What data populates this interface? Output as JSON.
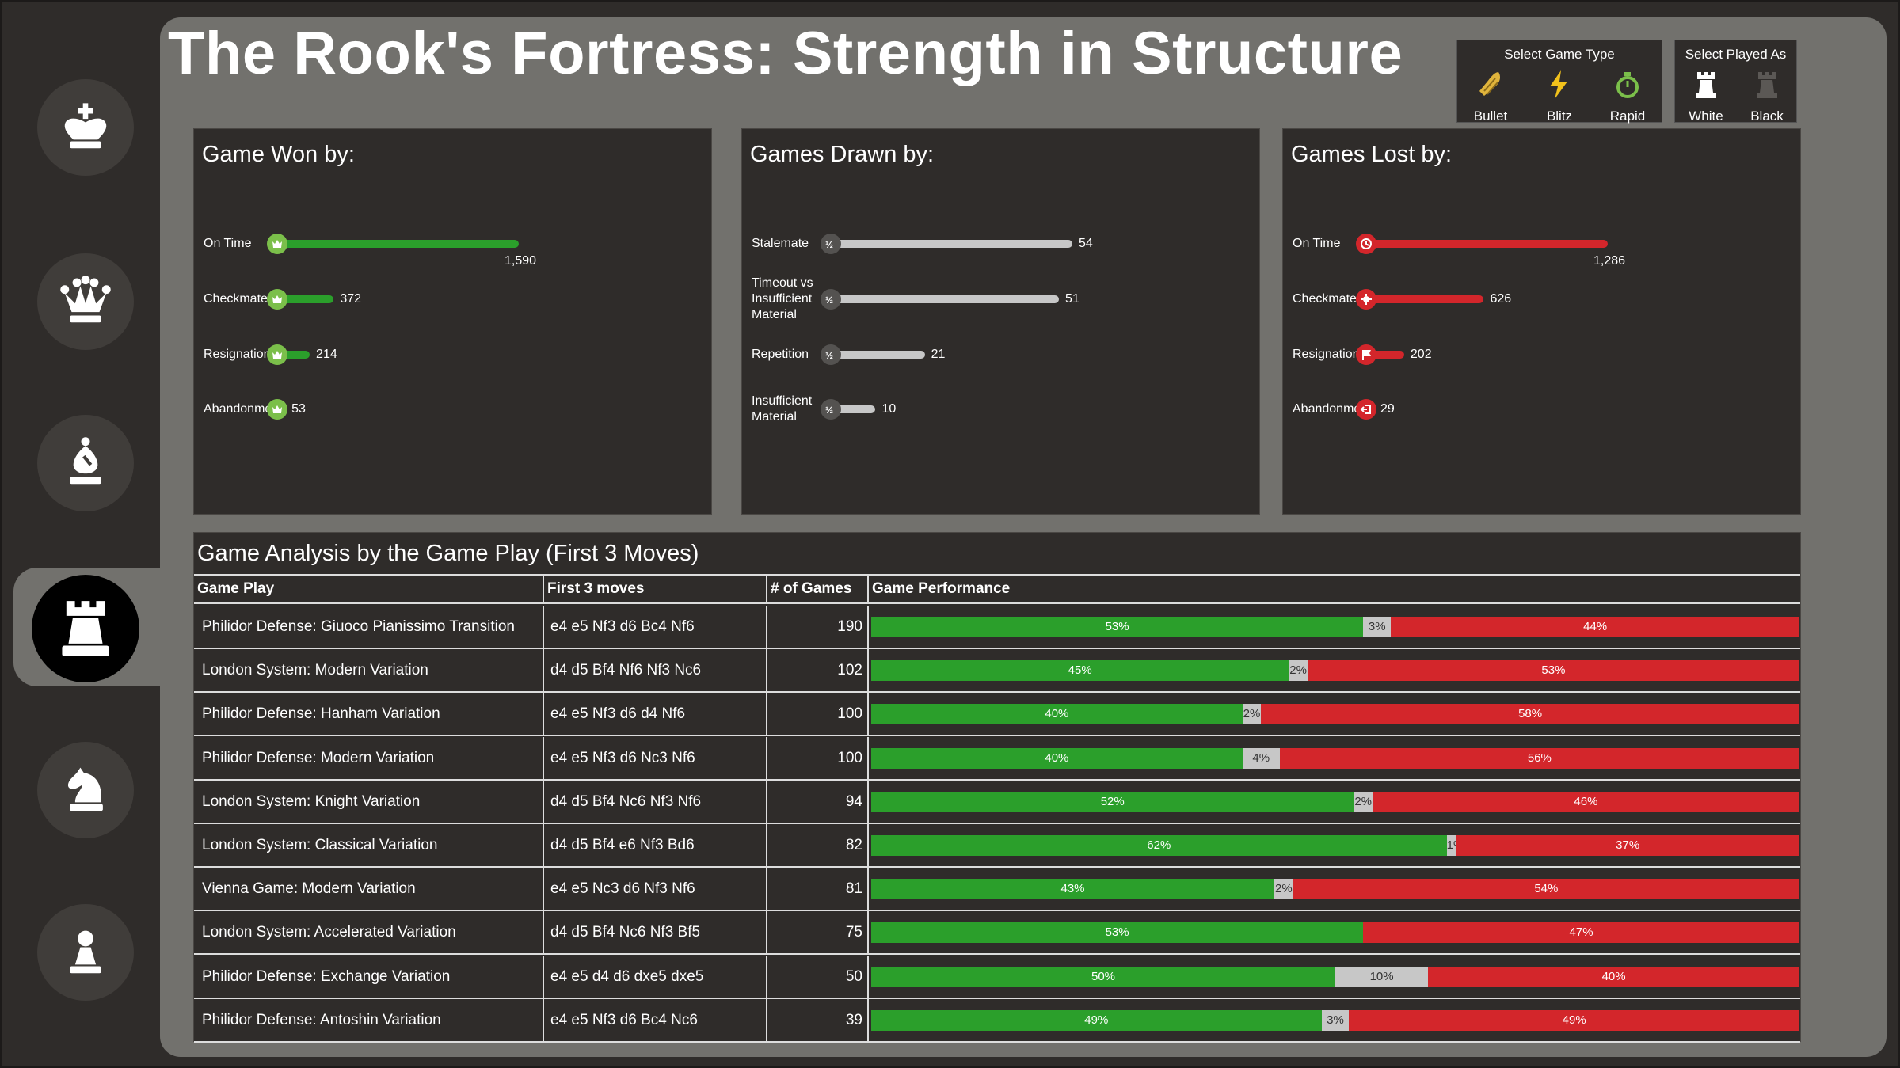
{
  "title": "The Rook's Fortress: Strength in Structure",
  "colors": {
    "win": "#2b9f2b",
    "draw": "#c7c7c7",
    "loss": "#d3262b",
    "panel": "#72716d",
    "card": "#2f2c2a"
  },
  "sidebar": {
    "items": [
      {
        "name": "king",
        "icon": "king-icon"
      },
      {
        "name": "queen",
        "icon": "queen-icon"
      },
      {
        "name": "bishop",
        "icon": "bishop-icon"
      },
      {
        "name": "rook",
        "icon": "rook-icon",
        "active": true
      },
      {
        "name": "knight",
        "icon": "knight-icon"
      },
      {
        "name": "pawn",
        "icon": "pawn-icon"
      }
    ]
  },
  "filters": {
    "game_type": {
      "title": "Select Game Type",
      "options": [
        {
          "label": "Bullet",
          "icon": "bullet-icon"
        },
        {
          "label": "Blitz",
          "icon": "lightning-icon"
        },
        {
          "label": "Rapid",
          "icon": "stopwatch-icon"
        }
      ]
    },
    "played_as": {
      "title": "Select Played As",
      "options": [
        {
          "label": "White",
          "icon": "white-rook-icon"
        },
        {
          "label": "Black",
          "icon": "black-rook-icon"
        }
      ]
    }
  },
  "chart_data": [
    {
      "type": "bar",
      "title": "Game Won by:",
      "categories": [
        "On Time",
        "Checkmate",
        "Resignation",
        "Abandonment"
      ],
      "values": [
        1590,
        372,
        214,
        53
      ],
      "value_labels": [
        "1,590",
        "372",
        "214",
        "53"
      ],
      "color": "#2b9f2b"
    },
    {
      "type": "bar",
      "title": "Games Drawn by:",
      "categories": [
        "Stalemate",
        "Timeout vs Insufficient Material",
        "Repetition",
        "Insufficient Material"
      ],
      "values": [
        54,
        51,
        21,
        10
      ],
      "value_labels": [
        "54",
        "51",
        "21",
        "10"
      ],
      "color": "#c7c7c7"
    },
    {
      "type": "bar",
      "title": "Games Lost by:",
      "categories": [
        "On Time",
        "Checkmate",
        "Resignation",
        "Abandonment"
      ],
      "values": [
        1286,
        626,
        202,
        29
      ],
      "value_labels": [
        "1,286",
        "626",
        "202",
        "29"
      ],
      "color": "#d3262b"
    },
    {
      "type": "table",
      "title": "Game Analysis by the Game Play (First 3 Moves)",
      "columns": [
        "Game Play",
        "First 3 moves",
        "# of Games",
        "Game Performance"
      ],
      "rows": [
        {
          "game_play": "Philidor Defense: Giuoco Pianissimo Transition",
          "moves": "e4 e5 Nf3 d6 Bc4 Nf6",
          "games": 190,
          "win": 53,
          "draw": 3,
          "loss": 44
        },
        {
          "game_play": "London System: Modern Variation",
          "moves": "d4 d5 Bf4 Nf6 Nf3 Nc6",
          "games": 102,
          "win": 45,
          "draw": 2,
          "loss": 53
        },
        {
          "game_play": "Philidor Defense: Hanham Variation",
          "moves": "e4 e5 Nf3 d6 d4 Nf6",
          "games": 100,
          "win": 40,
          "draw": 2,
          "loss": 58
        },
        {
          "game_play": "Philidor Defense: Modern Variation",
          "moves": "e4 e5 Nf3 d6 Nc3 Nf6",
          "games": 100,
          "win": 40,
          "draw": 4,
          "loss": 56
        },
        {
          "game_play": "London System: Knight Variation",
          "moves": "d4 d5 Bf4 Nc6 Nf3 Nf6",
          "games": 94,
          "win": 52,
          "draw": 2,
          "loss": 46
        },
        {
          "game_play": "London System: Classical Variation",
          "moves": "d4 d5 Bf4 e6 Nf3 Bd6",
          "games": 82,
          "win": 62,
          "draw": 1,
          "loss": 37
        },
        {
          "game_play": "Vienna Game: Modern Variation",
          "moves": "e4 e5 Nc3 d6 Nf3 Nf6",
          "games": 81,
          "win": 43,
          "draw": 2,
          "loss": 54
        },
        {
          "game_play": "London System: Accelerated Variation",
          "moves": "d4 d5 Bf4 Nc6 Nf3 Bf5",
          "games": 75,
          "win": 53,
          "draw": 0,
          "loss": 47
        },
        {
          "game_play": "Philidor Defense: Exchange Variation",
          "moves": "e4 e5 d4 d6 dxe5 dxe5",
          "games": 50,
          "win": 50,
          "draw": 10,
          "loss": 40
        },
        {
          "game_play": "Philidor Defense: Antoshin Variation",
          "moves": "e4 e5 Nf3 d6 Bc4 Nc6",
          "games": 39,
          "win": 49,
          "draw": 3,
          "loss": 49
        }
      ]
    }
  ]
}
